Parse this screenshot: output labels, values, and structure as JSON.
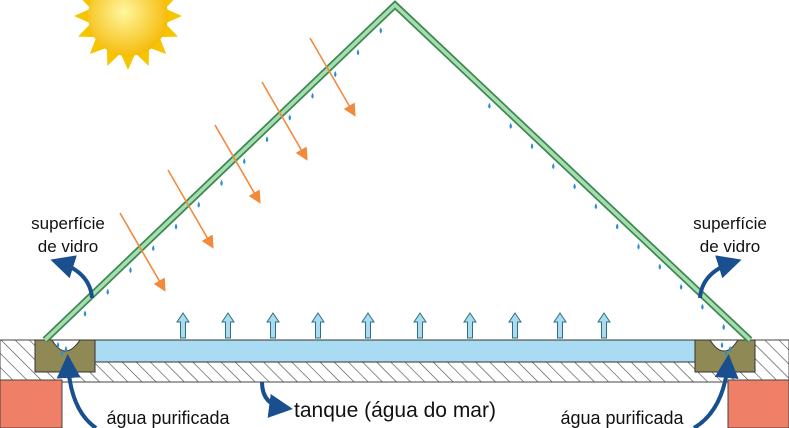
{
  "labels": {
    "glass_left": {
      "line1": "superfície",
      "line2": "de vidro"
    },
    "glass_right": {
      "line1": "superfície",
      "line2": "de vidro"
    },
    "tank": "tanque (água do mar)",
    "purified_left": "água purificada",
    "purified_right": "água purificada"
  }
}
